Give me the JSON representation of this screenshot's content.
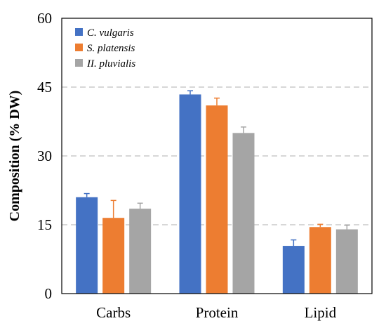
{
  "chart_data": {
    "type": "bar",
    "title": "",
    "xlabel": "",
    "ylabel": "Composition (% DW)",
    "ylim": [
      0,
      60
    ],
    "yticks": [
      0,
      15,
      30,
      45,
      60
    ],
    "grid": "horizontal dashed",
    "legend_position": "top-left",
    "categories": [
      "Carbs",
      "Protein",
      "Lipid"
    ],
    "series": [
      {
        "name": "C. vulgaris",
        "color": "#4472c4",
        "values": [
          21.0,
          43.4,
          10.4
        ],
        "errors": [
          0.8,
          0.8,
          1.3
        ]
      },
      {
        "name": "S. platensis",
        "color": "#ed7d31",
        "values": [
          16.5,
          41.0,
          14.5
        ],
        "errors": [
          3.8,
          1.6,
          0.6
        ]
      },
      {
        "name": "II. pluvialis",
        "color": "#a5a5a5",
        "values": [
          18.5,
          35.0,
          14.0
        ],
        "errors": [
          1.2,
          1.3,
          0.9
        ]
      }
    ]
  }
}
